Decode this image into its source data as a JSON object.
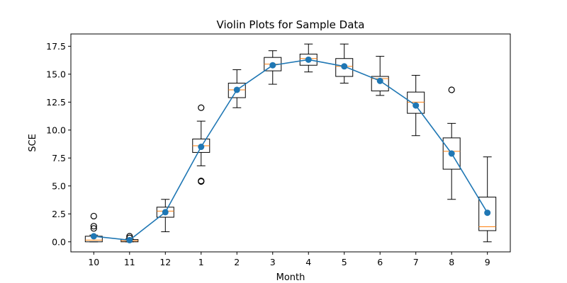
{
  "chart_data": {
    "type": "box",
    "title": "Violin Plots for Sample Data",
    "xlabel": "Month",
    "ylabel": "SCE",
    "categories": [
      "10",
      "11",
      "12",
      "1",
      "2",
      "3",
      "4",
      "5",
      "6",
      "7",
      "8",
      "9"
    ],
    "ylim": [
      -0.9,
      18.6
    ],
    "yticks": [
      "0.0",
      "2.5",
      "5.0",
      "7.5",
      "10.0",
      "12.5",
      "15.0",
      "17.5"
    ],
    "boxes": [
      {
        "whisker_low": 0.0,
        "q1": 0.0,
        "median": 0.15,
        "q3": 0.5,
        "whisker_high": 0.6,
        "outliers": [
          1.2,
          1.4,
          2.3
        ]
      },
      {
        "whisker_low": 0.0,
        "q1": 0.0,
        "median": 0.1,
        "q3": 0.2,
        "whisker_high": 0.25,
        "outliers": [
          0.35,
          0.5
        ]
      },
      {
        "whisker_low": 0.9,
        "q1": 2.2,
        "median": 2.75,
        "q3": 3.1,
        "whisker_high": 3.8,
        "outliers": []
      },
      {
        "whisker_low": 6.8,
        "q1": 8.0,
        "median": 8.6,
        "q3": 9.2,
        "whisker_high": 10.8,
        "outliers": [
          5.4,
          5.45,
          12.0
        ]
      },
      {
        "whisker_low": 12.0,
        "q1": 12.9,
        "median": 13.6,
        "q3": 14.2,
        "whisker_high": 15.4,
        "outliers": []
      },
      {
        "whisker_low": 14.1,
        "q1": 15.3,
        "median": 15.9,
        "q3": 16.5,
        "whisker_high": 17.1,
        "outliers": []
      },
      {
        "whisker_low": 15.2,
        "q1": 15.8,
        "median": 16.4,
        "q3": 16.8,
        "whisker_high": 17.7,
        "outliers": []
      },
      {
        "whisker_low": 14.2,
        "q1": 14.8,
        "median": 15.7,
        "q3": 16.4,
        "whisker_high": 17.7,
        "outliers": []
      },
      {
        "whisker_low": 13.1,
        "q1": 13.5,
        "median": 14.6,
        "q3": 14.8,
        "whisker_high": 16.6,
        "outliers": []
      },
      {
        "whisker_low": 9.5,
        "q1": 11.5,
        "median": 12.5,
        "q3": 13.4,
        "whisker_high": 14.9,
        "outliers": []
      },
      {
        "whisker_low": 3.8,
        "q1": 6.5,
        "median": 8.1,
        "q3": 9.3,
        "whisker_high": 10.6,
        "outliers": [
          13.6
        ]
      },
      {
        "whisker_low": 0.0,
        "q1": 1.0,
        "median": 1.35,
        "q3": 4.0,
        "whisker_high": 7.6,
        "outliers": []
      }
    ],
    "mean_line": {
      "values": [
        0.5,
        0.15,
        2.65,
        8.5,
        13.6,
        15.8,
        16.3,
        15.7,
        14.4,
        12.2,
        7.9,
        2.6
      ],
      "color": "#1f77b4"
    },
    "median_color": "#ff7f0e",
    "grid": false
  }
}
